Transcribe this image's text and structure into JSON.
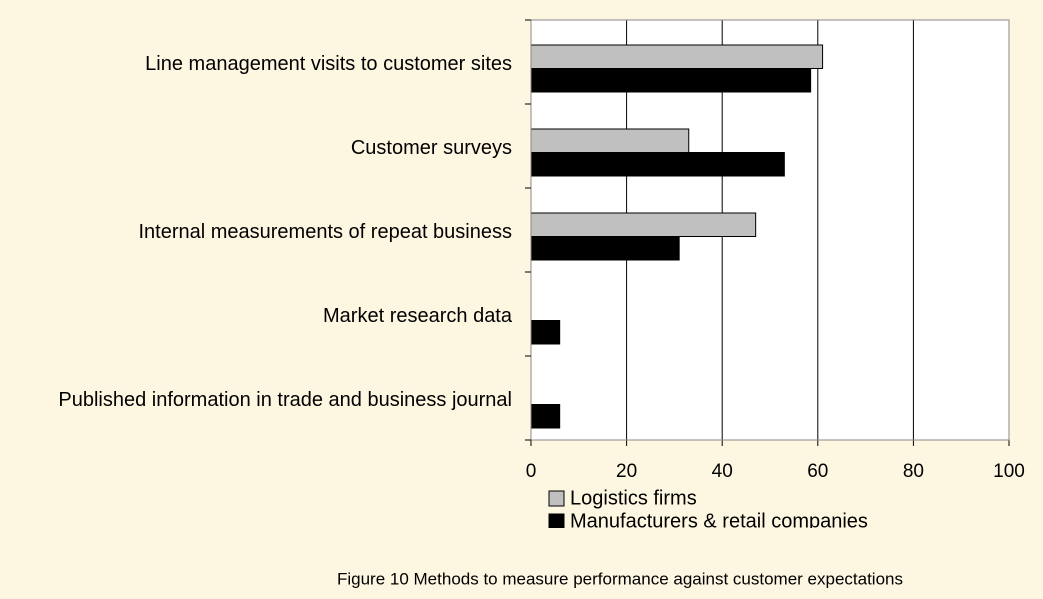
{
  "chart_data": {
    "type": "bar",
    "orientation": "horizontal",
    "caption": "Figure 10 Methods to measure performance against customer expectations",
    "categories": [
      "Line management visits to customer sites",
      "Customer surveys",
      "Internal measurements of repeat business",
      "Market research data",
      "Published information in trade and business journal"
    ],
    "series": [
      {
        "name": "Logistics firms",
        "color": "#c0c0c0",
        "values": [
          61,
          33,
          47,
          0,
          0
        ]
      },
      {
        "name": "Manufacturers & retail companies",
        "color": "#000000",
        "values": [
          58.5,
          53,
          31,
          6,
          6
        ]
      }
    ],
    "xlim": [
      0,
      100
    ],
    "xticks": [
      0,
      20,
      40,
      60,
      80,
      100
    ],
    "grid": true
  }
}
